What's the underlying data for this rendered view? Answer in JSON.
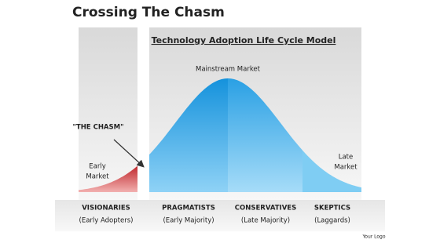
{
  "header": {
    "title": "Crossing The Chasm"
  },
  "diagram": {
    "subtitle": "Technology Adoption Life Cycle Model",
    "peak_label": "Mainstream Market",
    "chasm_label": "\"THE CHASM\"",
    "early_market": [
      "Early",
      "Market"
    ],
    "late_market": [
      "Late",
      "Market"
    ],
    "segments": [
      {
        "name": "VISIONARIES",
        "group": "(Early Adopters)"
      },
      {
        "name": "PRAGMATISTS",
        "group": "(Early Majority)"
      },
      {
        "name": "CONSERVATIVES",
        "group": "(Late Majority)"
      },
      {
        "name": "SKEPTICS",
        "group": "(Laggards)"
      }
    ]
  },
  "footer": {
    "logo": "Your Logo"
  }
}
